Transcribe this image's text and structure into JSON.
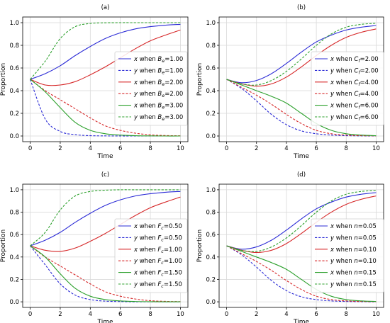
{
  "chart_data": [
    {
      "type": "line",
      "title": "(a)",
      "xlabel": "Time",
      "ylabel": "Proportion",
      "xlim": [
        -0.5,
        10.5
      ],
      "ylim": [
        -0.05,
        1.05
      ],
      "xticks": [
        0,
        2,
        4,
        6,
        8,
        10
      ],
      "yticks": [
        0.0,
        0.2,
        0.4,
        0.6,
        0.8,
        1.0
      ],
      "grid": true,
      "legend_position": "right",
      "x": [
        0,
        1,
        2,
        3,
        4,
        5,
        6,
        7,
        8,
        9,
        10
      ],
      "series": [
        {
          "name": "x when B_e=1.00",
          "color": "#2b2bd6",
          "dash": "solid",
          "values": [
            0.5,
            0.55,
            0.62,
            0.71,
            0.79,
            0.86,
            0.91,
            0.945,
            0.965,
            0.978,
            0.985
          ]
        },
        {
          "name": "y when B_e=1.00",
          "color": "#2b2bd6",
          "dash": "dashed",
          "values": [
            0.5,
            0.15,
            0.04,
            0.012,
            0.003,
            0.001,
            0,
            0,
            0,
            0,
            0
          ]
        },
        {
          "name": "x when B_e=2.00",
          "color": "#d62728",
          "dash": "solid",
          "values": [
            0.5,
            0.45,
            0.45,
            0.48,
            0.54,
            0.61,
            0.69,
            0.77,
            0.84,
            0.89,
            0.935
          ]
        },
        {
          "name": "y when B_e=2.00",
          "color": "#d62728",
          "dash": "dashed",
          "values": [
            0.5,
            0.4,
            0.32,
            0.24,
            0.16,
            0.09,
            0.05,
            0.025,
            0.01,
            0.004,
            0.002
          ]
        },
        {
          "name": "x when B_e=3.00",
          "color": "#2ca02c",
          "dash": "solid",
          "values": [
            0.5,
            0.39,
            0.25,
            0.12,
            0.05,
            0.02,
            0.008,
            0.003,
            0.001,
            0,
            0
          ]
        },
        {
          "name": "y when B_e=3.00",
          "color": "#2ca02c",
          "dash": "dashed",
          "values": [
            0.5,
            0.66,
            0.86,
            0.965,
            0.993,
            0.999,
            1,
            1,
            1,
            1,
            1
          ]
        }
      ],
      "legend_labels": [
        {
          "var": "x",
          "sym": "B",
          "sub": "e",
          "val": "=1.00"
        },
        {
          "var": "y",
          "sym": "B",
          "sub": "e",
          "val": "=1.00"
        },
        {
          "var": "x",
          "sym": "B",
          "sub": "e",
          "val": "=2.00"
        },
        {
          "var": "y",
          "sym": "B",
          "sub": "e",
          "val": "=2.00"
        },
        {
          "var": "x",
          "sym": "B",
          "sub": "e",
          "val": "=3.00"
        },
        {
          "var": "y",
          "sym": "B",
          "sub": "e",
          "val": "=3.00"
        }
      ]
    },
    {
      "type": "line",
      "title": "(b)",
      "xlabel": "Time",
      "ylabel": "Proportion",
      "xlim": [
        -0.5,
        10.5
      ],
      "ylim": [
        -0.05,
        1.05
      ],
      "xticks": [
        0,
        2,
        4,
        6,
        8,
        10
      ],
      "yticks": [
        0.0,
        0.2,
        0.4,
        0.6,
        0.8,
        1.0
      ],
      "grid": true,
      "legend_position": "right",
      "x": [
        0,
        1,
        2,
        3,
        4,
        5,
        6,
        7,
        8,
        9,
        10
      ],
      "series": [
        {
          "name": "x when C_f=2.00",
          "color": "#2b2bd6",
          "dash": "solid",
          "values": [
            0.5,
            0.47,
            0.49,
            0.55,
            0.64,
            0.74,
            0.83,
            0.89,
            0.935,
            0.96,
            0.975
          ]
        },
        {
          "name": "y when C_f=2.00",
          "color": "#2b2bd6",
          "dash": "dashed",
          "values": [
            0.5,
            0.42,
            0.31,
            0.19,
            0.1,
            0.045,
            0.02,
            0.008,
            0.003,
            0.001,
            0
          ]
        },
        {
          "name": "x when C_f=4.00",
          "color": "#d62728",
          "dash": "solid",
          "values": [
            0.5,
            0.46,
            0.44,
            0.46,
            0.52,
            0.61,
            0.71,
            0.8,
            0.87,
            0.915,
            0.945
          ]
        },
        {
          "name": "y when C_f=4.00",
          "color": "#d62728",
          "dash": "dashed",
          "values": [
            0.5,
            0.43,
            0.36,
            0.28,
            0.19,
            0.11,
            0.05,
            0.02,
            0.008,
            0.003,
            0.001
          ]
        },
        {
          "name": "x when C_f=6.00",
          "color": "#2ca02c",
          "dash": "solid",
          "values": [
            0.5,
            0.45,
            0.4,
            0.35,
            0.29,
            0.2,
            0.11,
            0.05,
            0.02,
            0.008,
            0.003
          ]
        },
        {
          "name": "y when C_f=6.00",
          "color": "#2ca02c",
          "dash": "dashed",
          "values": [
            0.5,
            0.46,
            0.45,
            0.49,
            0.57,
            0.68,
            0.8,
            0.9,
            0.96,
            0.985,
            0.995
          ]
        }
      ],
      "legend_labels": [
        {
          "var": "x",
          "sym": "C",
          "sub": "f",
          "val": "=2.00"
        },
        {
          "var": "y",
          "sym": "C",
          "sub": "f",
          "val": "=2.00"
        },
        {
          "var": "x",
          "sym": "C",
          "sub": "f",
          "val": "=4.00"
        },
        {
          "var": "y",
          "sym": "C",
          "sub": "f",
          "val": "=4.00"
        },
        {
          "var": "x",
          "sym": "C",
          "sub": "f",
          "val": "=6.00"
        },
        {
          "var": "y",
          "sym": "C",
          "sub": "f",
          "val": "=6.00"
        }
      ]
    },
    {
      "type": "line",
      "title": "(c)",
      "xlabel": "Time",
      "ylabel": "Proportion",
      "xlim": [
        -0.5,
        10.5
      ],
      "ylim": [
        -0.05,
        1.05
      ],
      "xticks": [
        0,
        2,
        4,
        6,
        8,
        10
      ],
      "yticks": [
        0.0,
        0.2,
        0.4,
        0.6,
        0.8,
        1.0
      ],
      "grid": true,
      "legend_position": "right",
      "x": [
        0,
        1,
        2,
        3,
        4,
        5,
        6,
        7,
        8,
        9,
        10
      ],
      "series": [
        {
          "name": "x when F_c=0.50",
          "color": "#2b2bd6",
          "dash": "solid",
          "values": [
            0.5,
            0.55,
            0.62,
            0.71,
            0.79,
            0.86,
            0.91,
            0.945,
            0.965,
            0.978,
            0.985
          ]
        },
        {
          "name": "y when F_c=0.50",
          "color": "#2b2bd6",
          "dash": "dashed",
          "values": [
            0.5,
            0.33,
            0.16,
            0.06,
            0.02,
            0.006,
            0.002,
            0,
            0,
            0,
            0
          ]
        },
        {
          "name": "x when F_c=1.00",
          "color": "#d62728",
          "dash": "solid",
          "values": [
            0.5,
            0.46,
            0.45,
            0.48,
            0.54,
            0.61,
            0.69,
            0.77,
            0.84,
            0.89,
            0.935
          ]
        },
        {
          "name": "y when F_c=1.00",
          "color": "#d62728",
          "dash": "dashed",
          "values": [
            0.5,
            0.4,
            0.32,
            0.24,
            0.16,
            0.09,
            0.05,
            0.025,
            0.01,
            0.004,
            0.002
          ]
        },
        {
          "name": "x when F_c=1.50",
          "color": "#2ca02c",
          "dash": "solid",
          "values": [
            0.5,
            0.4,
            0.25,
            0.12,
            0.05,
            0.02,
            0.008,
            0.003,
            0.001,
            0,
            0
          ]
        },
        {
          "name": "y when F_c=1.50",
          "color": "#2ca02c",
          "dash": "dashed",
          "values": [
            0.5,
            0.62,
            0.82,
            0.945,
            0.985,
            0.996,
            1,
            1,
            1,
            1,
            1
          ]
        }
      ],
      "legend_labels": [
        {
          "var": "x",
          "sym": "F",
          "sub": "c",
          "val": "=0.50"
        },
        {
          "var": "y",
          "sym": "F",
          "sub": "c",
          "val": "=0.50"
        },
        {
          "var": "x",
          "sym": "F",
          "sub": "c",
          "val": "=1.00"
        },
        {
          "var": "y",
          "sym": "F",
          "sub": "c",
          "val": "=1.00"
        },
        {
          "var": "x",
          "sym": "F",
          "sub": "c",
          "val": "=1.50"
        },
        {
          "var": "y",
          "sym": "F",
          "sub": "c",
          "val": "=1.50"
        }
      ]
    },
    {
      "type": "line",
      "title": "(d)",
      "xlabel": "Time",
      "ylabel": "Proportion",
      "xlim": [
        -0.5,
        10.5
      ],
      "ylim": [
        -0.05,
        1.05
      ],
      "xticks": [
        0,
        2,
        4,
        6,
        8,
        10
      ],
      "yticks": [
        0.0,
        0.2,
        0.4,
        0.6,
        0.8,
        1.0
      ],
      "grid": true,
      "legend_position": "right",
      "x": [
        0,
        1,
        2,
        3,
        4,
        5,
        6,
        7,
        8,
        9,
        10
      ],
      "series": [
        {
          "name": "x when n=0.05",
          "color": "#2b2bd6",
          "dash": "solid",
          "values": [
            0.5,
            0.47,
            0.49,
            0.55,
            0.64,
            0.74,
            0.83,
            0.89,
            0.935,
            0.96,
            0.975
          ]
        },
        {
          "name": "y when n=0.05",
          "color": "#2b2bd6",
          "dash": "dashed",
          "values": [
            0.5,
            0.42,
            0.31,
            0.19,
            0.1,
            0.045,
            0.02,
            0.008,
            0.003,
            0.001,
            0
          ]
        },
        {
          "name": "x when n=0.10",
          "color": "#d62728",
          "dash": "solid",
          "values": [
            0.5,
            0.46,
            0.44,
            0.46,
            0.52,
            0.61,
            0.71,
            0.8,
            0.87,
            0.915,
            0.945
          ]
        },
        {
          "name": "y when n=0.10",
          "color": "#d62728",
          "dash": "dashed",
          "values": [
            0.5,
            0.43,
            0.36,
            0.28,
            0.19,
            0.11,
            0.05,
            0.02,
            0.008,
            0.003,
            0.001
          ]
        },
        {
          "name": "x when n=0.15",
          "color": "#2ca02c",
          "dash": "solid",
          "values": [
            0.5,
            0.45,
            0.4,
            0.35,
            0.29,
            0.2,
            0.11,
            0.05,
            0.02,
            0.008,
            0.003
          ]
        },
        {
          "name": "y when n=0.15",
          "color": "#2ca02c",
          "dash": "dashed",
          "values": [
            0.5,
            0.46,
            0.45,
            0.49,
            0.57,
            0.68,
            0.8,
            0.9,
            0.96,
            0.985,
            0.995
          ]
        }
      ],
      "legend_labels": [
        {
          "var": "x",
          "sym": "n",
          "sub": "",
          "val": "=0.05"
        },
        {
          "var": "y",
          "sym": "n",
          "sub": "",
          "val": "=0.05"
        },
        {
          "var": "x",
          "sym": "n",
          "sub": "",
          "val": "=0.10"
        },
        {
          "var": "y",
          "sym": "n",
          "sub": "",
          "val": "=0.10"
        },
        {
          "var": "x",
          "sym": "n",
          "sub": "",
          "val": "=0.15"
        },
        {
          "var": "y",
          "sym": "n",
          "sub": "",
          "val": "=0.15"
        }
      ]
    }
  ]
}
